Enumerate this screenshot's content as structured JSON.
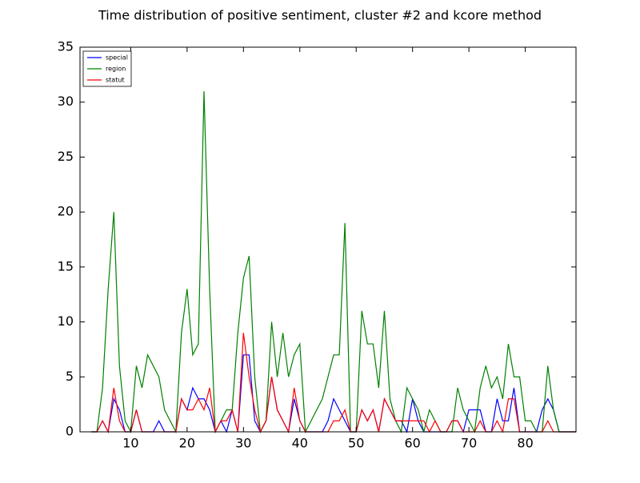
{
  "chart_data": {
    "type": "line",
    "title": "Time distribution of positive sentiment, cluster #2 and kcore method",
    "x": [
      3,
      4,
      5,
      6,
      7,
      8,
      9,
      10,
      11,
      12,
      13,
      14,
      15,
      16,
      17,
      18,
      19,
      20,
      21,
      22,
      23,
      24,
      25,
      26,
      27,
      28,
      29,
      30,
      31,
      32,
      33,
      34,
      35,
      36,
      37,
      38,
      39,
      40,
      41,
      42,
      43,
      44,
      45,
      46,
      47,
      48,
      49,
      50,
      51,
      52,
      53,
      54,
      55,
      56,
      57,
      58,
      59,
      60,
      61,
      62,
      63,
      64,
      65,
      66,
      67,
      68,
      69,
      70,
      71,
      72,
      73,
      74,
      75,
      76,
      77,
      78,
      79,
      80,
      81,
      82,
      83,
      84,
      85,
      86,
      87,
      88,
      89
    ],
    "series": [
      {
        "name": "special",
        "color": "#0000ff",
        "values": [
          0,
          0,
          1,
          0,
          3,
          2,
          0,
          0,
          2,
          0,
          0,
          0,
          1,
          0,
          0,
          0,
          3,
          2,
          4,
          3,
          3,
          2,
          0,
          1,
          0,
          2,
          0,
          7,
          7,
          1,
          0,
          1,
          5,
          2,
          1,
          0,
          3,
          1,
          0,
          0,
          0,
          0,
          1,
          3,
          2,
          1,
          0,
          0,
          2,
          1,
          2,
          0,
          3,
          2,
          1,
          1,
          0,
          3,
          1,
          0,
          0,
          0,
          0,
          0,
          1,
          1,
          0,
          2,
          2,
          2,
          0,
          0,
          3,
          1,
          1,
          4,
          0,
          0,
          0,
          0,
          2,
          3,
          2,
          0,
          0,
          0,
          0
        ]
      },
      {
        "name": "region",
        "color": "#008000",
        "values": [
          0,
          0,
          4,
          13,
          20,
          6,
          1,
          0,
          6,
          4,
          7,
          6,
          5,
          2,
          1,
          0,
          9,
          13,
          7,
          8,
          31,
          13,
          0,
          1,
          2,
          2,
          9,
          14,
          16,
          5,
          0,
          1,
          10,
          5,
          9,
          5,
          7,
          8,
          0,
          1,
          2,
          3,
          5,
          7,
          7,
          19,
          0,
          0,
          11,
          8,
          8,
          4,
          11,
          3,
          1,
          0,
          4,
          3,
          2,
          0,
          2,
          1,
          0,
          0,
          0,
          4,
          2,
          1,
          0,
          4,
          6,
          4,
          5,
          3,
          8,
          5,
          5,
          1,
          1,
          0,
          0,
          6,
          2,
          0,
          0,
          0,
          0
        ]
      },
      {
        "name": "statut",
        "color": "#ff0000",
        "values": [
          0,
          0,
          1,
          0,
          4,
          1,
          0,
          0,
          2,
          0,
          0,
          0,
          0,
          0,
          0,
          0,
          3,
          2,
          2,
          3,
          2,
          4,
          0,
          1,
          1,
          2,
          0,
          9,
          5,
          2,
          0,
          1,
          5,
          2,
          1,
          0,
          4,
          1,
          0,
          0,
          0,
          0,
          0,
          1,
          1,
          2,
          0,
          0,
          2,
          1,
          2,
          0,
          3,
          2,
          1,
          1,
          1,
          1,
          1,
          1,
          0,
          1,
          0,
          0,
          1,
          1,
          0,
          0,
          0,
          1,
          0,
          0,
          1,
          0,
          3,
          3,
          0,
          0,
          0,
          0,
          0,
          1,
          0,
          0,
          0,
          0,
          0
        ]
      }
    ],
    "xlim": [
      1,
      89
    ],
    "xticks": [
      10,
      20,
      30,
      40,
      50,
      60,
      70,
      80
    ],
    "ylim": [
      0,
      35
    ],
    "yticks": [
      0,
      5,
      10,
      15,
      20,
      25,
      30,
      35
    ],
    "legend": "upper left"
  }
}
